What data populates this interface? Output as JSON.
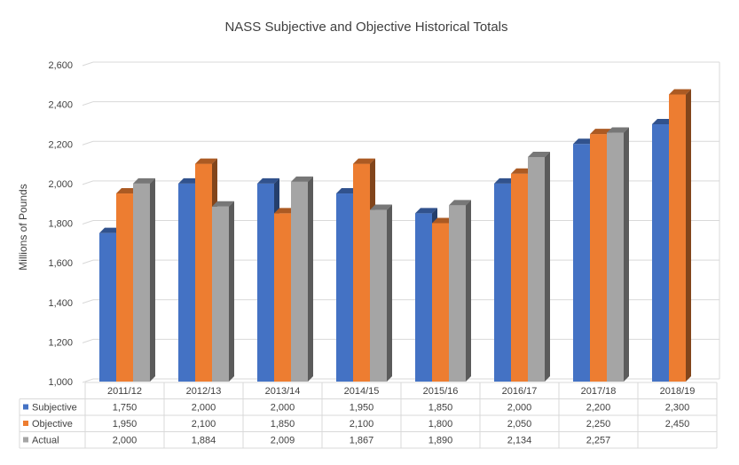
{
  "chart_data": {
    "type": "bar",
    "title": "NASS Subjective and Objective Historical Totals",
    "ylabel": "Millions of Pounds",
    "xlabel": "",
    "ylim": [
      1000,
      2600
    ],
    "yticks": [
      1000,
      1200,
      1400,
      1600,
      1800,
      2000,
      2200,
      2400,
      2600
    ],
    "ytick_labels": [
      "1,000",
      "1,200",
      "1,400",
      "1,600",
      "1,800",
      "2,000",
      "2,200",
      "2,400",
      "2,600"
    ],
    "grid": true,
    "legend": "data-table",
    "categories": [
      "2011/12",
      "2012/13",
      "2013/14",
      "2014/15",
      "2015/16",
      "2016/17",
      "2017/18",
      "2018/19"
    ],
    "series": [
      {
        "name": "Subjective",
        "color": "#4472C4",
        "values": [
          1750,
          2000,
          2000,
          1950,
          1850,
          2000,
          2200,
          2300
        ],
        "labels": [
          "1,750",
          "2,000",
          "2,000",
          "1,950",
          "1,850",
          "2,000",
          "2,200",
          "2,300"
        ]
      },
      {
        "name": "Objective",
        "color": "#ED7D31",
        "values": [
          1950,
          2100,
          1850,
          2100,
          1800,
          2050,
          2250,
          2450
        ],
        "labels": [
          "1,950",
          "2,100",
          "1,850",
          "2,100",
          "1,800",
          "2,050",
          "2,250",
          "2,450"
        ]
      },
      {
        "name": "Actual",
        "color": "#A5A5A5",
        "values": [
          2000,
          1884,
          2009,
          1867,
          1890,
          2134,
          2257,
          null
        ],
        "labels": [
          "2,000",
          "1,884",
          "2,009",
          "1,867",
          "1,890",
          "2,134",
          "2,257",
          ""
        ]
      }
    ]
  }
}
